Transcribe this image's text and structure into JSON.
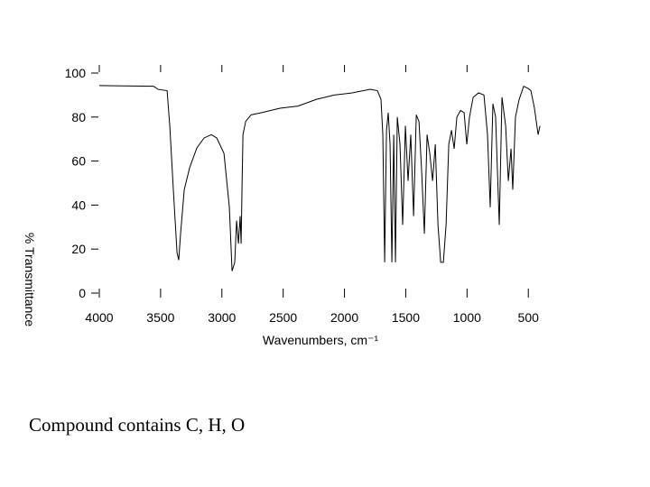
{
  "chart_data": {
    "type": "line",
    "x_label": "Wavenumbers, cm⁻¹",
    "y_label": "% Transmittance",
    "annotation": "Compound contains C, H, O",
    "color": "#000000",
    "xlim": [
      4000,
      400
    ],
    "ylim": [
      0,
      100
    ],
    "xticks": [
      4000,
      3500,
      3000,
      2500,
      2000,
      1500,
      1000,
      500
    ],
    "yticks": [
      0,
      20,
      40,
      60,
      80,
      100
    ],
    "x": [
      4000,
      3558,
      3521,
      3447,
      3425,
      3396,
      3366,
      3352,
      3337,
      3307,
      3263,
      3204,
      3145,
      3086,
      3042,
      2983,
      2939,
      2917,
      2895,
      2880,
      2865,
      2851,
      2843,
      2836,
      2828,
      2806,
      2762,
      2674,
      2526,
      2379,
      2231,
      2084,
      1937,
      1790,
      1731,
      1702,
      1687,
      1672,
      1657,
      1643,
      1628,
      1613,
      1598,
      1584,
      1569,
      1547,
      1525,
      1503,
      1481,
      1459,
      1436,
      1414,
      1392,
      1370,
      1348,
      1326,
      1304,
      1281,
      1259,
      1237,
      1215,
      1193,
      1171,
      1149,
      1127,
      1105,
      1083,
      1053,
      1024,
      1002,
      980,
      950,
      906,
      862,
      833,
      811,
      789,
      767,
      737,
      715,
      685,
      663,
      641,
      627,
      605,
      575,
      538,
      502,
      479,
      450,
      420,
      405
    ],
    "values": [
      94.3,
      94,
      92.6,
      92,
      76,
      47,
      18.4,
      15,
      27,
      47,
      57,
      66,
      70.5,
      72,
      70.5,
      63.5,
      39,
      10,
      14,
      33,
      22.5,
      35,
      22.5,
      47,
      72,
      78,
      81,
      82,
      84,
      85,
      88,
      90,
      91,
      92.6,
      92,
      88,
      72,
      14,
      74,
      82,
      67.6,
      14,
      72,
      14,
      80,
      67.6,
      31,
      76,
      51,
      72,
      35,
      81,
      78,
      55,
      27,
      72,
      63.5,
      51,
      67.6,
      31,
      14,
      14,
      31,
      67.6,
      74,
      65.6,
      80,
      83,
      82,
      67.6,
      80,
      89,
      91,
      90,
      72,
      39,
      86,
      80,
      31,
      89,
      76,
      51,
      65.6,
      47,
      80,
      88,
      94,
      93,
      92,
      84,
      72,
      76
    ]
  }
}
